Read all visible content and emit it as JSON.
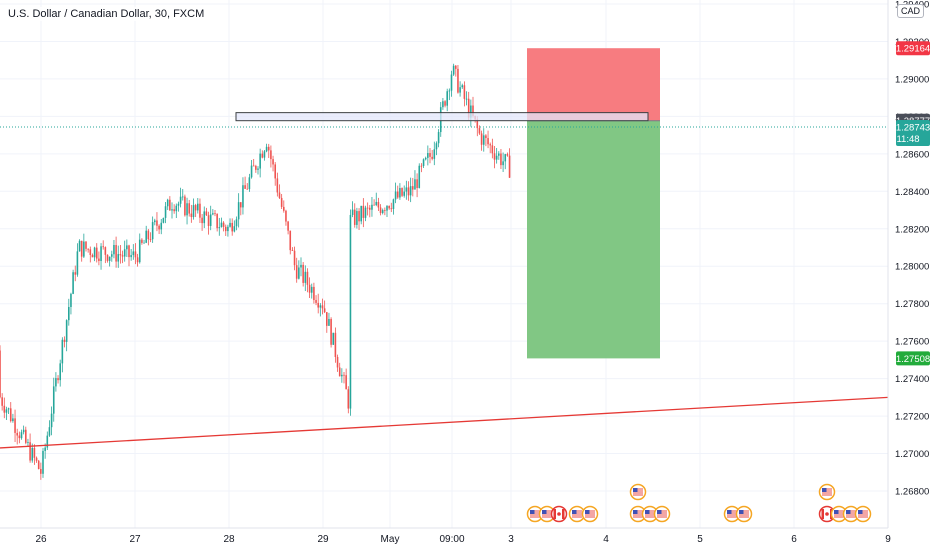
{
  "header": {
    "title": "U.S. Dollar / Canadian Dollar, 30, FXCM",
    "currency": "CAD"
  },
  "price_axis": {
    "labels": [
      "1.29400",
      "1.29200",
      "1.29000",
      "1.28800",
      "1.28600",
      "1.28400",
      "1.28200",
      "1.28000",
      "1.27800",
      "1.27600",
      "1.27400",
      "1.27200",
      "1.27000",
      "1.26800"
    ]
  },
  "time_axis": {
    "labels": [
      "26",
      "27",
      "28",
      "29",
      "May",
      "09:00",
      "3",
      "4",
      "5",
      "6",
      "9"
    ]
  },
  "tags": {
    "stop": "1.29164",
    "entry": "1.28777",
    "current_price": "1.28743",
    "countdown": "11:48",
    "target": "1.27508"
  },
  "colors": {
    "up": "#26a69a",
    "down": "#ef5350",
    "stop_zone": "#f77c80",
    "target_zone": "#81c784",
    "trendline": "#e53935",
    "resistance_fill": "#e3e7fb",
    "resistance_border": "#3c4043"
  },
  "events": {
    "icons": [
      "us-flag-icon",
      "canada-flag-icon"
    ]
  },
  "chart_data": {
    "type": "candlestick",
    "symbol": "USDCAD",
    "interval": "30",
    "source": "FXCM",
    "ylim": [
      1.266,
      1.295
    ],
    "x": [
      "26",
      "27",
      "28",
      "29",
      "May",
      "09:00",
      "3",
      "4",
      "5",
      "6",
      "9"
    ],
    "price_path": [
      {
        "x": "25",
        "y": 1.2755
      },
      {
        "x": "25.5",
        "y": 1.2725
      },
      {
        "x": "26",
        "y": 1.269
      },
      {
        "x": "26.4",
        "y": 1.281
      },
      {
        "x": "27",
        "y": 1.2805
      },
      {
        "x": "27.4",
        "y": 1.2835
      },
      {
        "x": "28",
        "y": 1.282
      },
      {
        "x": "28.4",
        "y": 1.2868
      },
      {
        "x": "28.7",
        "y": 1.28
      },
      {
        "x": "29",
        "y": 1.278
      },
      {
        "x": "29.4",
        "y": 1.2725
      },
      {
        "x": "May",
        "y": 1.2745
      },
      {
        "x": "May 03:00",
        "y": 1.284
      },
      {
        "x": "May 06:00",
        "y": 1.286
      },
      {
        "x": "09:00",
        "y": 1.2905
      },
      {
        "x": "May 13:00",
        "y": 1.287
      },
      {
        "x": "May 18:00",
        "y": 1.285
      },
      {
        "x": "3",
        "y": 1.2874
      }
    ],
    "horizontal_zone": [
      1.28777,
      1.2882
    ],
    "position": {
      "side": "short",
      "entry": 1.28777,
      "stop": 1.29164,
      "target": 1.27508
    },
    "trendline": {
      "start": {
        "x": "25",
        "y": 1.2703
      },
      "end": {
        "x": "9",
        "y": 1.273
      }
    },
    "last_price": 1.28743,
    "grid": true
  }
}
